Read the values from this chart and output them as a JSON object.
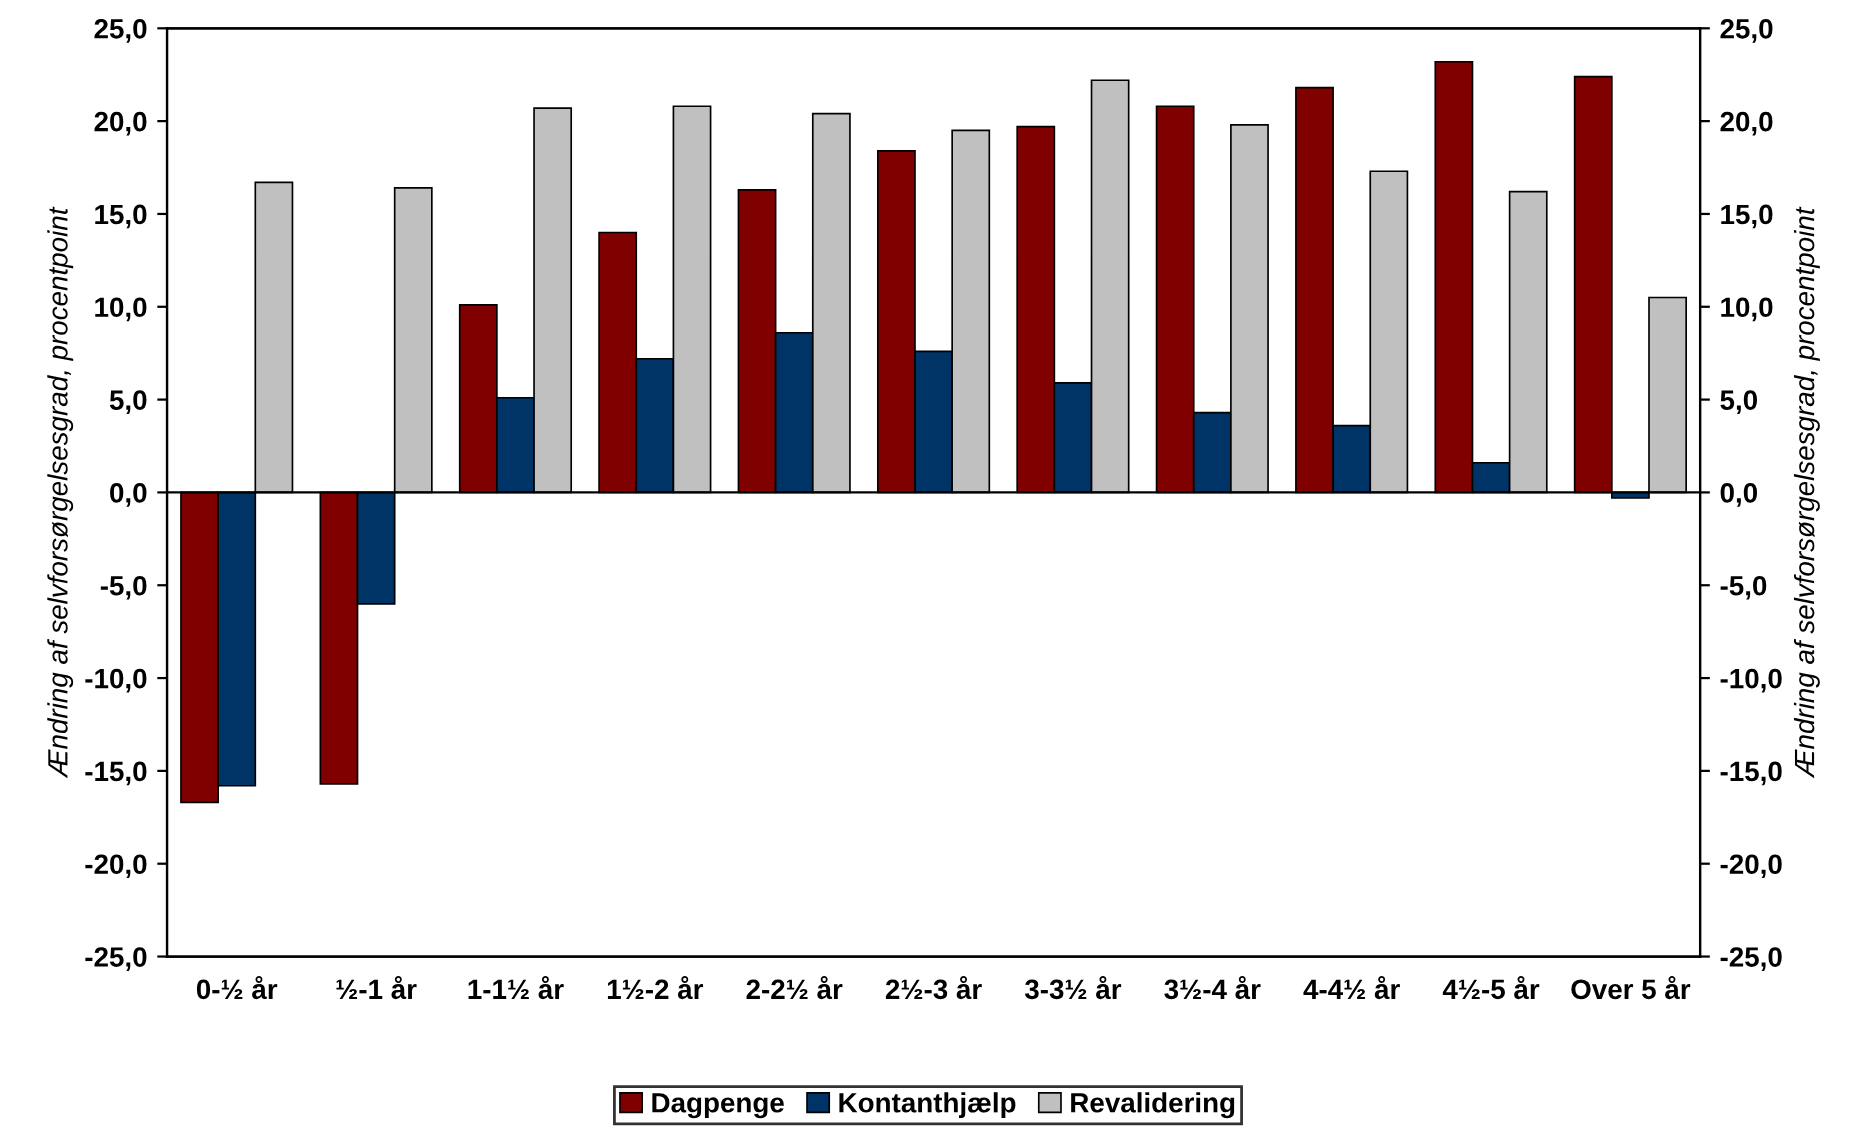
{
  "chart_data": {
    "type": "bar",
    "categories": [
      "0-½ år",
      "½-1 år",
      "1-1½ år",
      "1½-2 år",
      "2-2½ år",
      "2½-3 år",
      "3-3½ år",
      "3½-4 år",
      "4-4½ år",
      "4½-5 år",
      "Over 5 år"
    ],
    "series": [
      {
        "name": "Dagpenge",
        "color": "#800000",
        "values": [
          -16.7,
          -15.7,
          10.1,
          14.0,
          16.3,
          18.4,
          19.7,
          20.8,
          21.8,
          23.2,
          22.4
        ]
      },
      {
        "name": "Kontanthjælp",
        "color": "#003366",
        "values": [
          -15.8,
          -6.0,
          5.1,
          7.2,
          8.6,
          7.6,
          5.9,
          4.3,
          3.6,
          1.6,
          -0.3
        ]
      },
      {
        "name": "Revalidering",
        "color": "#c0c0c0",
        "values": [
          16.7,
          16.4,
          20.7,
          20.8,
          20.4,
          19.5,
          22.2,
          19.8,
          17.3,
          16.2,
          10.5
        ]
      }
    ],
    "ylabel": "Ændring af selvforsørgelsesgrad, procentpoint",
    "y2label": "Ændring af selvforsørgelsesgrad, procentpoint",
    "ylim": [
      -25,
      25
    ],
    "yticks": [
      {
        "value": -25,
        "label": "-25,0"
      },
      {
        "value": -20,
        "label": "-20,0"
      },
      {
        "value": -15,
        "label": "-15,0"
      },
      {
        "value": -10,
        "label": "-10,0"
      },
      {
        "value": -5,
        "label": "-5,0"
      },
      {
        "value": 0,
        "label": "0,0"
      },
      {
        "value": 5,
        "label": "5,0"
      },
      {
        "value": 10,
        "label": "10,0"
      },
      {
        "value": 15,
        "label": "15,0"
      },
      {
        "value": 20,
        "label": "20,0"
      },
      {
        "value": 25,
        "label": "25,0"
      }
    ],
    "y2lim": [
      -25,
      25
    ],
    "y2ticks": [
      {
        "value": -25,
        "label": "-25,0"
      },
      {
        "value": -20,
        "label": "-20,0"
      },
      {
        "value": -15,
        "label": "-15,0"
      },
      {
        "value": -10,
        "label": "-10,0"
      },
      {
        "value": -5,
        "label": "-5,0"
      },
      {
        "value": 0,
        "label": "0,0"
      },
      {
        "value": 5,
        "label": "5,0"
      },
      {
        "value": 10,
        "label": "10,0"
      },
      {
        "value": 15,
        "label": "15,0"
      },
      {
        "value": 20,
        "label": "20,0"
      },
      {
        "value": 25,
        "label": "25,0"
      }
    ],
    "legend": "bottom"
  }
}
